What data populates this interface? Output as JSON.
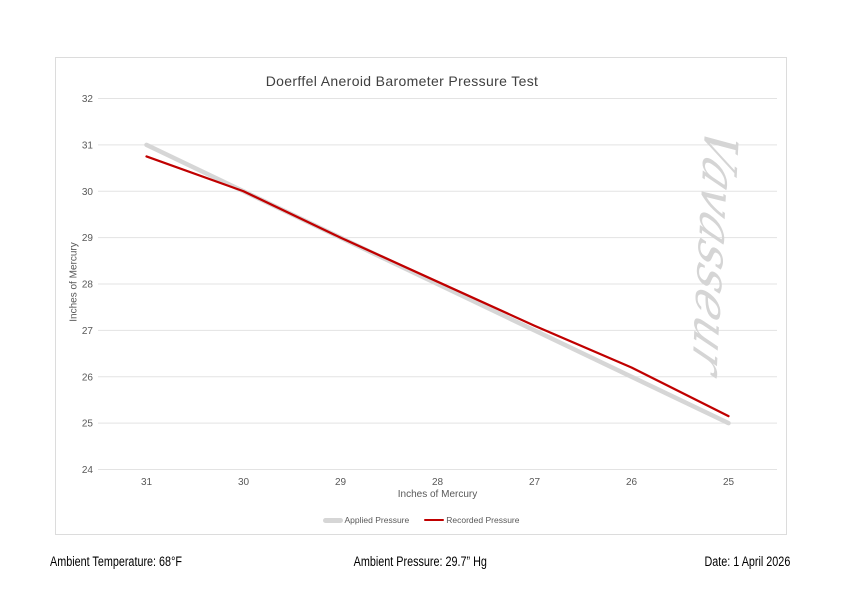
{
  "chart": {
    "watermark": "Vavasseur",
    "border_color": "#dcdcdc",
    "gridline_color": "#e3e3e3",
    "tick_label_color": "#595959",
    "title_color": "#404040"
  },
  "chart_data": {
    "type": "line",
    "title": "Doerffel Aneroid Barometer Pressure Test",
    "xlabel": "Inches of Mercury",
    "ylabel": "Inches of Mercury",
    "categories": [
      "31",
      "30",
      "29",
      "28",
      "27",
      "26",
      "25"
    ],
    "series": [
      {
        "name": "Applied Pressure",
        "color": "#d6d6d6",
        "stroke_width": 4.5,
        "values": [
          31,
          30,
          29,
          28,
          27,
          26,
          25
        ]
      },
      {
        "name": "Recorded Pressure",
        "color": "#c00000",
        "stroke_width": 2.25,
        "values": [
          30.75,
          30.0,
          29.0,
          28.05,
          27.1,
          26.2,
          25.15
        ]
      }
    ],
    "ylim": [
      24,
      32
    ],
    "y_tick_step": 1,
    "grid": "horizontal",
    "legend_position": "bottom"
  },
  "footer": {
    "ambient_temperature": "Ambient Temperature: 68°F",
    "ambient_pressure": "Ambient Pressure: 29.7” Hg",
    "date": "Date: 1 April 2026"
  }
}
